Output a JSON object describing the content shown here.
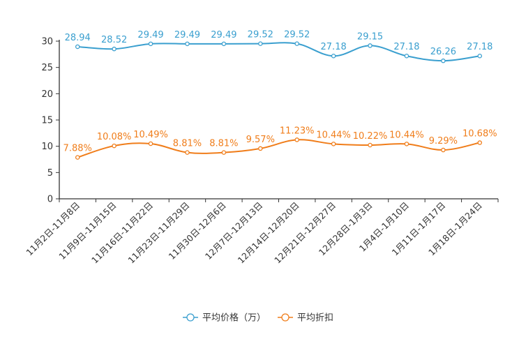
{
  "chart_data": {
    "type": "line",
    "categories": [
      "11月2日-11月8日",
      "11月9日-11月15日",
      "11月16日-11月22日",
      "11月23日-11月29日",
      "11月30日-12月6日",
      "12月7日-12月13日",
      "12月14日-12月20日",
      "12月21日-12月27日",
      "12月28日-1月3日",
      "1月4日-1月10日",
      "1月11日-1月17日",
      "1月18日-1月24日"
    ],
    "ylim": [
      0,
      30
    ],
    "yticks": [
      0,
      5,
      10,
      15,
      20,
      25,
      30
    ],
    "series": [
      {
        "name": "平均价格（万）",
        "color": "#3a9fcf",
        "values": [
          28.94,
          28.52,
          29.49,
          29.49,
          29.49,
          29.52,
          29.52,
          27.18,
          29.15,
          27.18,
          26.26,
          27.18
        ],
        "labels": [
          "28.94",
          "28.52",
          "29.49",
          "29.49",
          "29.49",
          "29.52",
          "29.52",
          "27.18",
          "29.15",
          "27.18",
          "26.26",
          "27.18"
        ]
      },
      {
        "name": "平均折扣",
        "color": "#f07d1a",
        "values": [
          7.88,
          10.08,
          10.49,
          8.81,
          8.81,
          9.57,
          11.23,
          10.44,
          10.22,
          10.44,
          9.29,
          10.68
        ],
        "labels": [
          "7.88%",
          "10.08%",
          "10.49%",
          "8.81%",
          "8.81%",
          "9.57%",
          "11.23%",
          "10.44%",
          "10.22%",
          "10.44%",
          "9.29%",
          "10.68%"
        ]
      }
    ],
    "legend_position": "bottom-center"
  }
}
